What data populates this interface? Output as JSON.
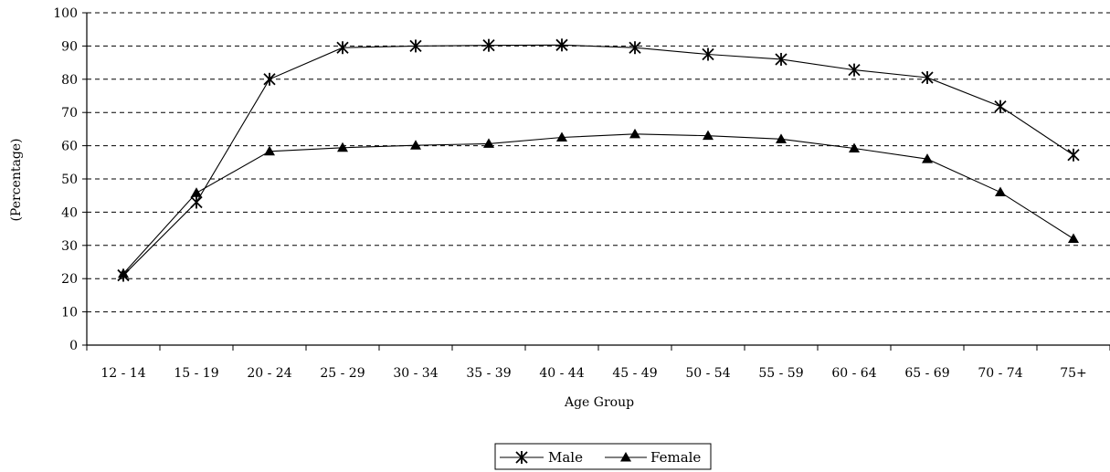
{
  "chart_data": {
    "type": "line",
    "xlabel": "Age Group",
    "ylabel": "(Percentage)",
    "ylim": [
      0,
      100
    ],
    "yticks": [
      0,
      10,
      20,
      30,
      40,
      50,
      60,
      70,
      80,
      90,
      100
    ],
    "grid": "horizontal-dashed",
    "legend_position": "bottom",
    "categories": [
      "12 - 14",
      "15 - 19",
      "20 - 24",
      "25 - 29",
      "30 - 34",
      "35 - 39",
      "40 - 44",
      "45 - 49",
      "50 - 54",
      "55 - 59",
      "60 - 64",
      "65 - 69",
      "70 - 74",
      "75+"
    ],
    "series": [
      {
        "name": "Male",
        "marker": "asterisk",
        "values": [
          21,
          43,
          80,
          89.5,
          90,
          90.2,
          90.3,
          89.5,
          87.5,
          86,
          82.8,
          80.5,
          71.8,
          57.2
        ]
      },
      {
        "name": "Female",
        "marker": "triangle",
        "values": [
          21.5,
          45.8,
          58.3,
          59.4,
          60.1,
          60.6,
          62.5,
          63.5,
          63,
          62,
          59.2,
          56,
          46,
          32
        ]
      }
    ]
  }
}
